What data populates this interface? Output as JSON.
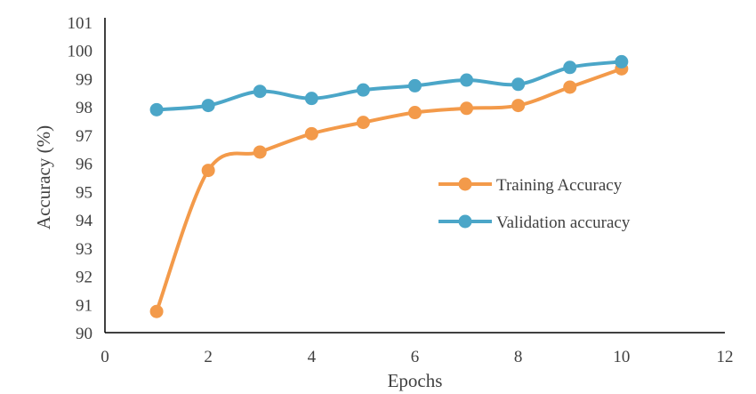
{
  "chart_data": {
    "type": "line",
    "xlabel": "Epochs",
    "ylabel": "Accuracy (%)",
    "xlim": [
      0,
      12
    ],
    "ylim": [
      90,
      101
    ],
    "xticks": [
      "0",
      "2",
      "4",
      "6",
      "8",
      "10",
      "12"
    ],
    "yticks": [
      "90",
      "91",
      "92",
      "93",
      "94",
      "95",
      "96",
      "97",
      "98",
      "99",
      "100",
      "101"
    ],
    "grid": false,
    "legend_position": "right",
    "series": [
      {
        "name": "Training Accuracy",
        "color": "#F39A4A",
        "x": [
          1,
          2,
          3,
          4,
          5,
          6,
          7,
          8,
          9,
          10
        ],
        "y": [
          90.75,
          95.75,
          96.4,
          97.05,
          97.45,
          97.8,
          97.95,
          98.05,
          98.7,
          99.35
        ]
      },
      {
        "name": "Validation accuracy",
        "color": "#4BA6C8",
        "x": [
          1,
          2,
          3,
          4,
          5,
          6,
          7,
          8,
          9,
          10
        ],
        "y": [
          97.9,
          98.05,
          98.55,
          98.3,
          98.6,
          98.75,
          98.95,
          98.8,
          99.4,
          99.6
        ]
      }
    ]
  }
}
